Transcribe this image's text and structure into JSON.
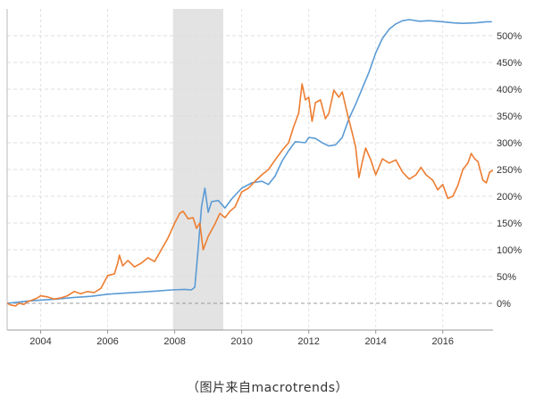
{
  "caption": "（图片来自macrotrends）",
  "chart_data": {
    "type": "line",
    "title": "",
    "xlabel": "",
    "ylabel": "",
    "xlim": [
      2003.0,
      2017.5
    ],
    "ylim": [
      -50,
      550
    ],
    "grid": true,
    "y_tick_values": [
      0,
      50,
      100,
      150,
      200,
      250,
      300,
      350,
      400,
      450,
      500
    ],
    "y_tick_labels": [
      "0%",
      "50%",
      "100%",
      "150%",
      "200%",
      "250%",
      "300%",
      "350%",
      "400%",
      "450%",
      "500%"
    ],
    "x_tick_values": [
      2004,
      2006,
      2008,
      2010,
      2012,
      2014,
      2016
    ],
    "x_tick_labels": [
      "2004",
      "2006",
      "2008",
      "2010",
      "2012",
      "2014",
      "2016"
    ],
    "shaded_regions": [
      {
        "x_start": 2007.95,
        "x_end": 2009.45,
        "color": "#e3e3e3"
      }
    ],
    "series": [
      {
        "color": "#5b9bd5",
        "points": [
          [
            2003.0,
            0
          ],
          [
            2003.3,
            2
          ],
          [
            2003.6,
            4
          ],
          [
            2004.0,
            6
          ],
          [
            2004.5,
            8
          ],
          [
            2005.0,
            11
          ],
          [
            2005.5,
            13
          ],
          [
            2006.0,
            17
          ],
          [
            2006.5,
            19
          ],
          [
            2007.0,
            21
          ],
          [
            2007.5,
            23
          ],
          [
            2007.9,
            25
          ],
          [
            2008.3,
            26
          ],
          [
            2008.5,
            25
          ],
          [
            2008.6,
            30
          ],
          [
            2008.7,
            100
          ],
          [
            2008.8,
            180
          ],
          [
            2008.9,
            215
          ],
          [
            2009.0,
            170
          ],
          [
            2009.1,
            190
          ],
          [
            2009.3,
            192
          ],
          [
            2009.5,
            178
          ],
          [
            2009.7,
            195
          ],
          [
            2010.0,
            215
          ],
          [
            2010.3,
            225
          ],
          [
            2010.6,
            228
          ],
          [
            2010.8,
            222
          ],
          [
            2011.0,
            238
          ],
          [
            2011.2,
            265
          ],
          [
            2011.4,
            285
          ],
          [
            2011.6,
            302
          ],
          [
            2011.9,
            300
          ],
          [
            2012.0,
            310
          ],
          [
            2012.2,
            308
          ],
          [
            2012.4,
            300
          ],
          [
            2012.6,
            294
          ],
          [
            2012.8,
            296
          ],
          [
            2013.0,
            310
          ],
          [
            2013.2,
            345
          ],
          [
            2013.4,
            372
          ],
          [
            2013.6,
            402
          ],
          [
            2013.8,
            432
          ],
          [
            2014.0,
            468
          ],
          [
            2014.2,
            495
          ],
          [
            2014.4,
            512
          ],
          [
            2014.6,
            522
          ],
          [
            2014.8,
            528
          ],
          [
            2015.0,
            530
          ],
          [
            2015.3,
            527
          ],
          [
            2015.6,
            528
          ],
          [
            2016.0,
            526
          ],
          [
            2016.3,
            524
          ],
          [
            2016.6,
            523
          ],
          [
            2017.0,
            524
          ],
          [
            2017.3,
            526
          ],
          [
            2017.45,
            526
          ]
        ]
      },
      {
        "color": "#ed7d31",
        "points": [
          [
            2003.0,
            0
          ],
          [
            2003.1,
            -3
          ],
          [
            2003.25,
            -5
          ],
          [
            2003.35,
            0
          ],
          [
            2003.5,
            -2
          ],
          [
            2003.6,
            3
          ],
          [
            2003.75,
            6
          ],
          [
            2003.9,
            10
          ],
          [
            2004.0,
            14
          ],
          [
            2004.2,
            12
          ],
          [
            2004.4,
            8
          ],
          [
            2004.6,
            10
          ],
          [
            2004.8,
            14
          ],
          [
            2005.0,
            22
          ],
          [
            2005.2,
            18
          ],
          [
            2005.4,
            22
          ],
          [
            2005.6,
            20
          ],
          [
            2005.8,
            28
          ],
          [
            2006.0,
            52
          ],
          [
            2006.2,
            55
          ],
          [
            2006.3,
            75
          ],
          [
            2006.35,
            90
          ],
          [
            2006.45,
            70
          ],
          [
            2006.6,
            80
          ],
          [
            2006.8,
            68
          ],
          [
            2007.0,
            75
          ],
          [
            2007.2,
            85
          ],
          [
            2007.4,
            78
          ],
          [
            2007.6,
            100
          ],
          [
            2007.8,
            122
          ],
          [
            2008.0,
            150
          ],
          [
            2008.15,
            168
          ],
          [
            2008.25,
            172
          ],
          [
            2008.4,
            158
          ],
          [
            2008.55,
            160
          ],
          [
            2008.65,
            140
          ],
          [
            2008.75,
            150
          ],
          [
            2008.85,
            100
          ],
          [
            2009.0,
            125
          ],
          [
            2009.2,
            148
          ],
          [
            2009.35,
            168
          ],
          [
            2009.5,
            160
          ],
          [
            2009.65,
            172
          ],
          [
            2009.8,
            180
          ],
          [
            2010.0,
            208
          ],
          [
            2010.2,
            215
          ],
          [
            2010.4,
            228
          ],
          [
            2010.6,
            240
          ],
          [
            2010.8,
            250
          ],
          [
            2011.0,
            268
          ],
          [
            2011.2,
            285
          ],
          [
            2011.4,
            300
          ],
          [
            2011.55,
            330
          ],
          [
            2011.7,
            355
          ],
          [
            2011.8,
            410
          ],
          [
            2011.9,
            380
          ],
          [
            2012.0,
            385
          ],
          [
            2012.1,
            340
          ],
          [
            2012.2,
            375
          ],
          [
            2012.35,
            380
          ],
          [
            2012.5,
            345
          ],
          [
            2012.6,
            355
          ],
          [
            2012.75,
            398
          ],
          [
            2012.9,
            385
          ],
          [
            2013.0,
            395
          ],
          [
            2013.15,
            355
          ],
          [
            2013.3,
            318
          ],
          [
            2013.4,
            292
          ],
          [
            2013.5,
            235
          ],
          [
            2013.6,
            265
          ],
          [
            2013.7,
            290
          ],
          [
            2013.85,
            268
          ],
          [
            2014.0,
            240
          ],
          [
            2014.2,
            270
          ],
          [
            2014.4,
            262
          ],
          [
            2014.6,
            268
          ],
          [
            2014.8,
            245
          ],
          [
            2015.0,
            232
          ],
          [
            2015.2,
            240
          ],
          [
            2015.35,
            254
          ],
          [
            2015.5,
            240
          ],
          [
            2015.7,
            230
          ],
          [
            2015.85,
            212
          ],
          [
            2016.0,
            222
          ],
          [
            2016.15,
            196
          ],
          [
            2016.3,
            200
          ],
          [
            2016.45,
            220
          ],
          [
            2016.6,
            250
          ],
          [
            2016.75,
            262
          ],
          [
            2016.85,
            280
          ],
          [
            2016.95,
            270
          ],
          [
            2017.05,
            265
          ],
          [
            2017.2,
            230
          ],
          [
            2017.3,
            225
          ],
          [
            2017.4,
            245
          ],
          [
            2017.6,
            252
          ],
          [
            2017.8,
            258
          ],
          [
            2017.9,
            248
          ]
        ]
      }
    ]
  }
}
